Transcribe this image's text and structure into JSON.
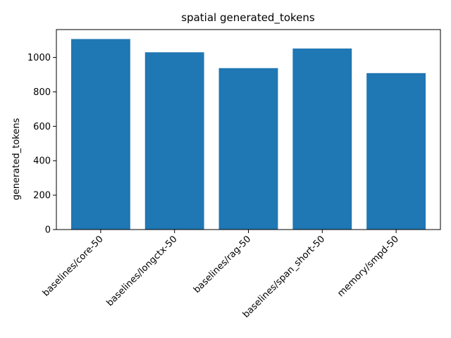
{
  "chart_data": {
    "type": "bar",
    "title": "spatial generated_tokens",
    "xlabel": "",
    "ylabel": "generated_tokens",
    "categories": [
      "baselines/core-50",
      "baselines/longctx-50",
      "baselines/rag-50",
      "baselines/span_short-50",
      "memory/smpd-50"
    ],
    "values": [
      1107,
      1030,
      938,
      1052,
      909
    ],
    "ylim": [
      0,
      1162
    ],
    "yticks": [
      0,
      200,
      400,
      600,
      800,
      1000
    ],
    "grid": false,
    "bar_color": "#1f77b4"
  }
}
